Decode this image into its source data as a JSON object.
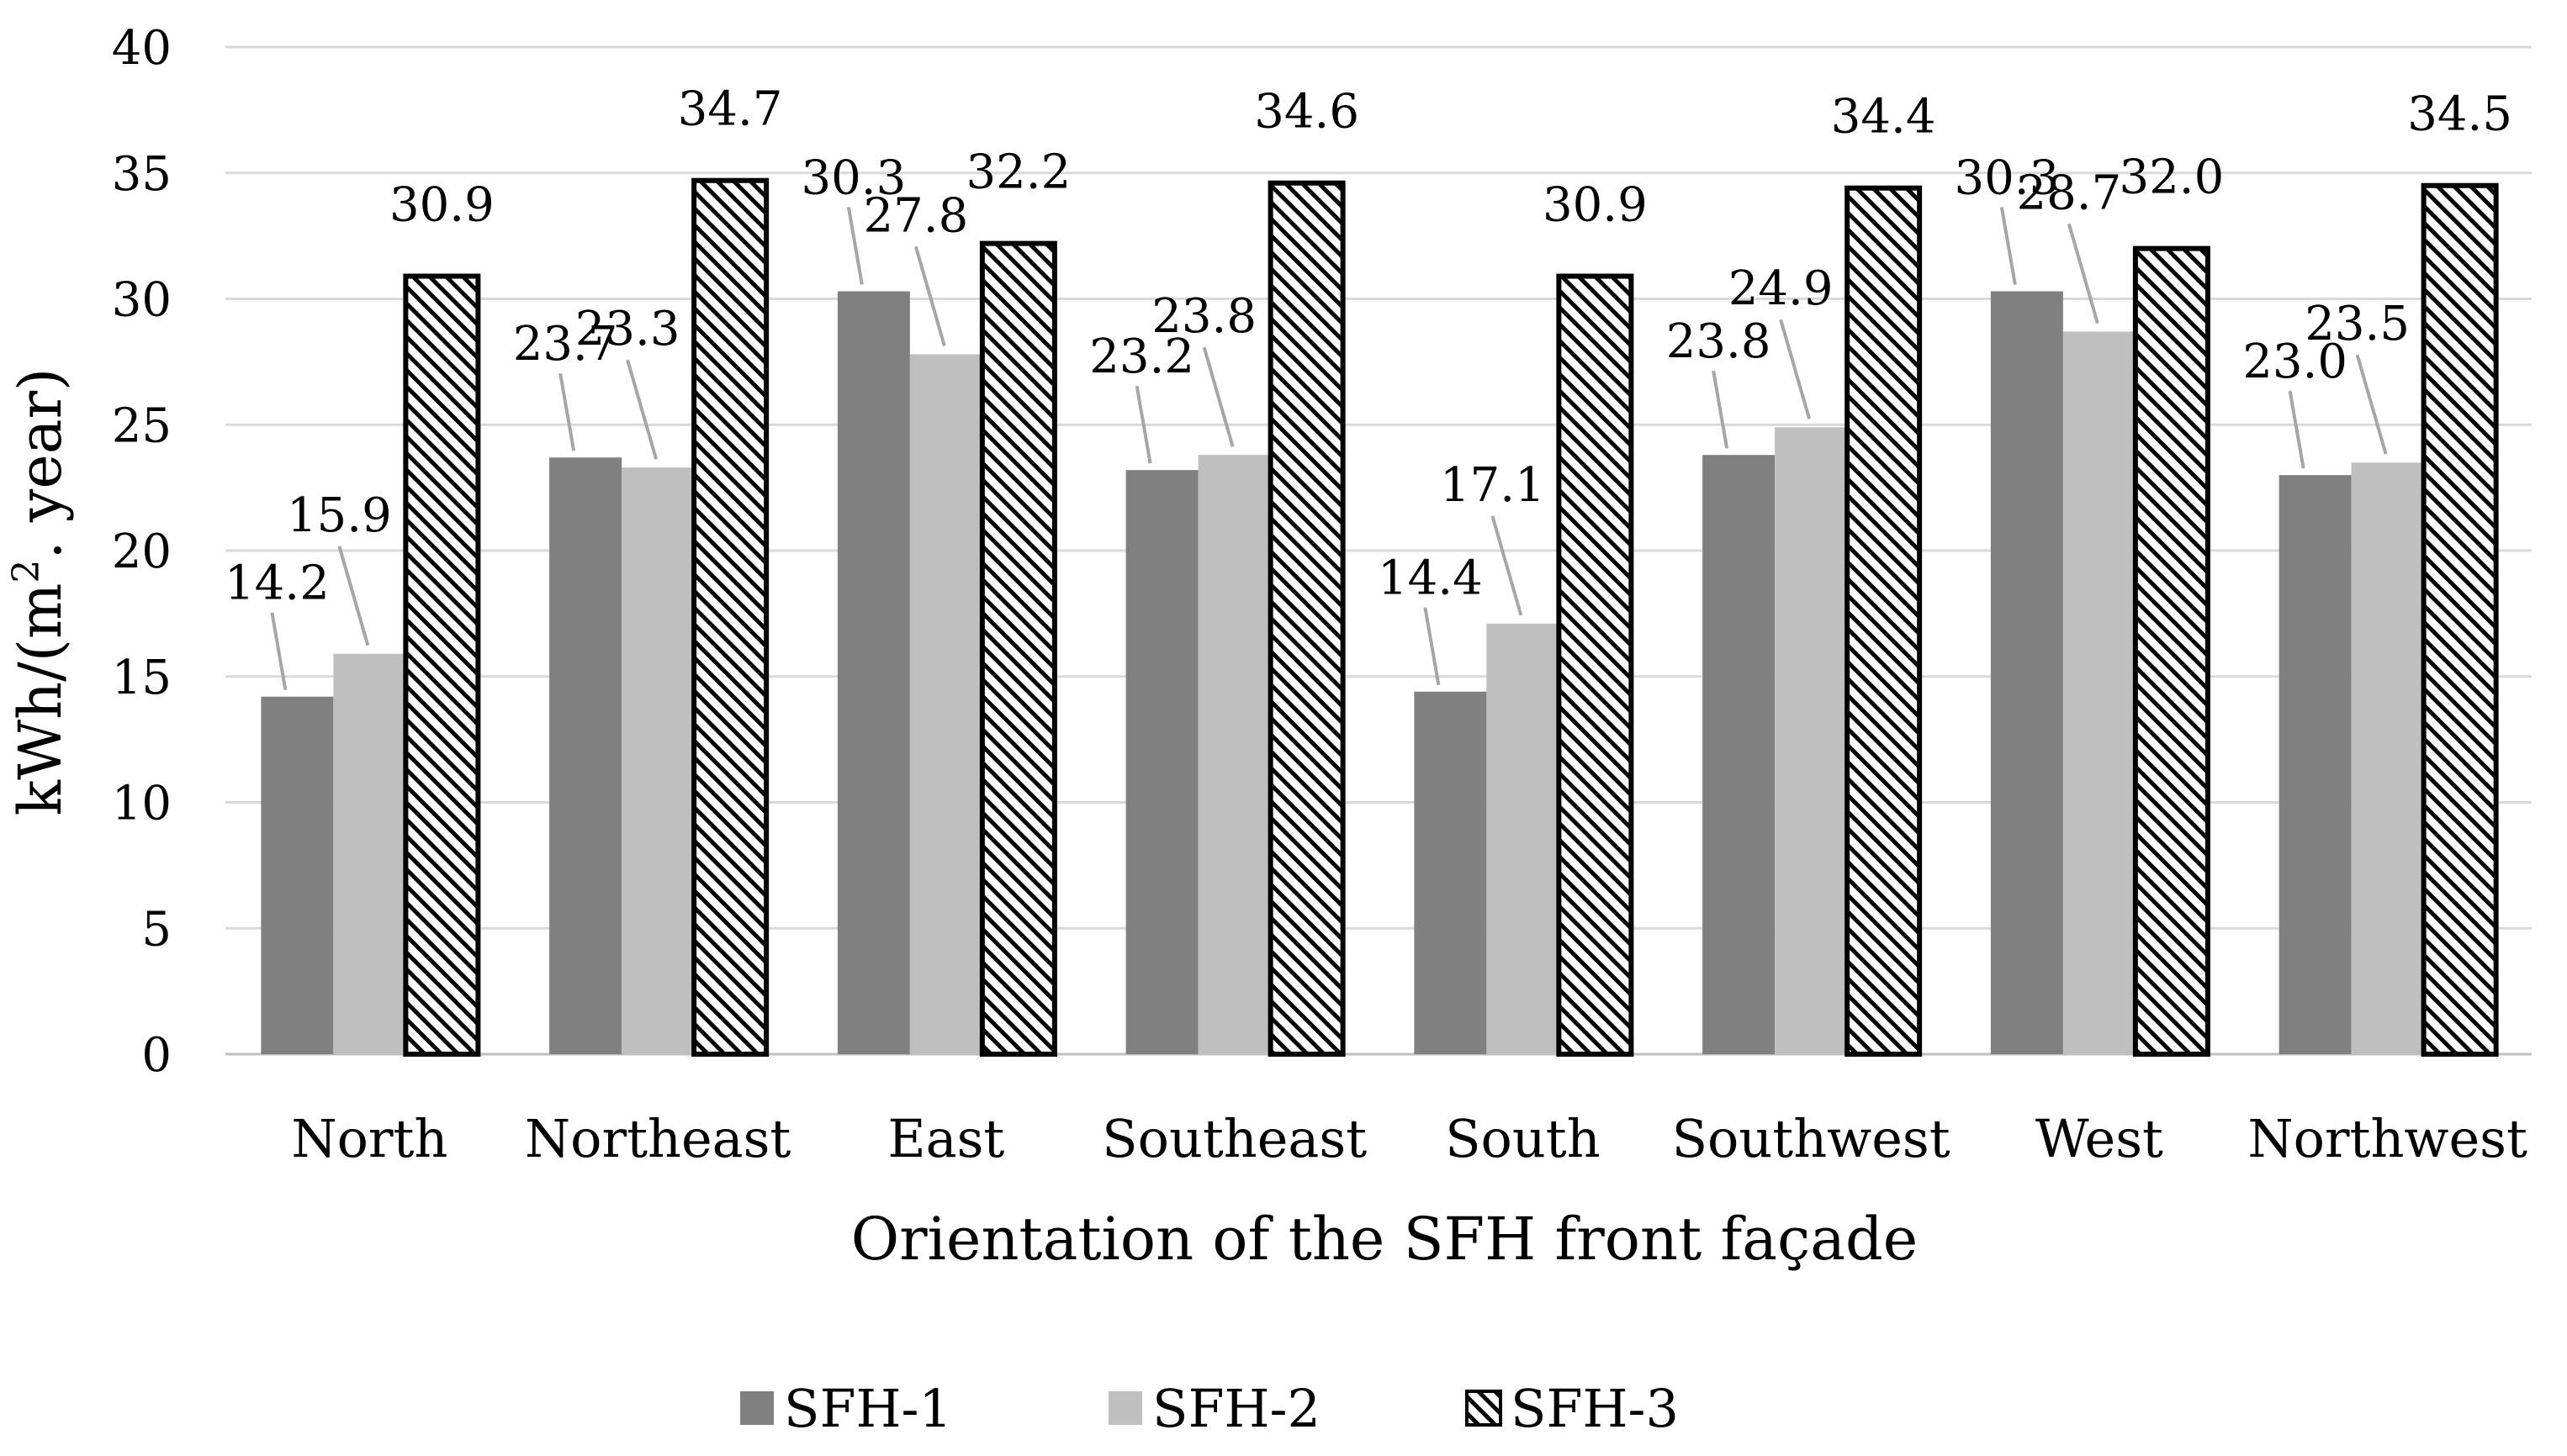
{
  "chart_data": {
    "type": "bar",
    "title": "",
    "xlabel": "Orientation of the SFH front façade",
    "ylabel_base": "kWh/(m",
    "ylabel_sup": "2",
    "ylabel_tail": ". year)",
    "ylim": [
      0,
      40
    ],
    "yticks": [
      "0",
      "5",
      "10",
      "15",
      "20",
      "25",
      "30",
      "35",
      "40"
    ],
    "grid": true,
    "legend_position": "bottom",
    "categories": [
      "North",
      "Northeast",
      "East",
      "Southeast",
      "South",
      "Southwest",
      "West",
      "Northwest"
    ],
    "series": [
      {
        "name": "SFH-1",
        "color": "#808080",
        "pattern": "solid",
        "values": [
          14.2,
          23.7,
          30.3,
          23.2,
          14.4,
          23.8,
          30.3,
          23.0
        ],
        "labels": [
          "14.2",
          "23.7",
          "30.3",
          "23.2",
          "14.4",
          "23.8",
          "30.3",
          "23.0"
        ]
      },
      {
        "name": "SFH-2",
        "color": "#bfbfbf",
        "pattern": "solid",
        "values": [
          15.9,
          23.3,
          27.8,
          23.8,
          17.1,
          24.9,
          28.7,
          23.5
        ],
        "labels": [
          "15.9",
          "23.3",
          "27.8",
          "23.8",
          "17.1",
          "24.9",
          "28.7",
          "23.5"
        ]
      },
      {
        "name": "SFH-3",
        "color": "#000000",
        "pattern": "diagonal-hatch",
        "values": [
          30.9,
          34.7,
          32.2,
          34.6,
          30.9,
          34.4,
          32.0,
          34.5
        ],
        "labels": [
          "30.9",
          "34.7",
          "32.2",
          "34.6",
          "30.9",
          "34.4",
          "32.0",
          "34.5"
        ]
      }
    ]
  }
}
